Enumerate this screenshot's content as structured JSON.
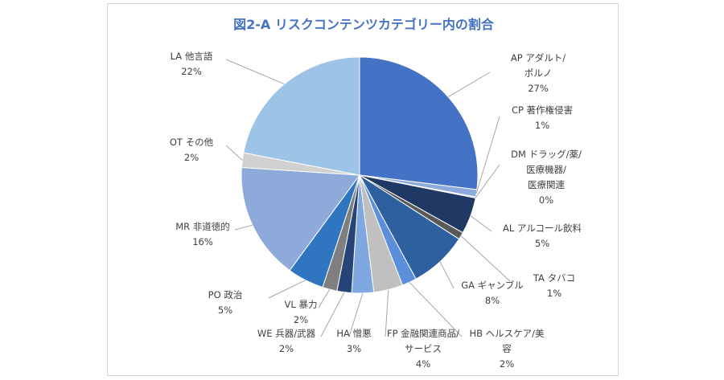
{
  "chart_data": {
    "type": "pie",
    "title": "図2-A リスクコンテンツカテゴリー内の割合",
    "slices": [
      {
        "code": "AP",
        "lines": [
          "AP アダルト/",
          "ポルノ"
        ],
        "value": 27,
        "pct": "27%",
        "color": "#4472c4"
      },
      {
        "code": "CP",
        "lines": [
          "CP 著作権侵害"
        ],
        "value": 1,
        "pct": "1%",
        "color": "#8faadc"
      },
      {
        "code": "DM",
        "lines": [
          "DM ドラッグ/薬/",
          "医療機器/",
          "医療関連"
        ],
        "value": 0,
        "pct": "0%",
        "color": "#a9a9a9"
      },
      {
        "code": "AL",
        "lines": [
          "AL アルコール飲料"
        ],
        "value": 5,
        "pct": "5%",
        "color": "#203864"
      },
      {
        "code": "TA",
        "lines": [
          "TA タバコ"
        ],
        "value": 1,
        "pct": "1%",
        "color": "#595959"
      },
      {
        "code": "GA",
        "lines": [
          "GA ギャンブル"
        ],
        "value": 8,
        "pct": "8%",
        "color": "#2e5f9f"
      },
      {
        "code": "HB",
        "lines": [
          "HB ヘルスケア/美",
          "容"
        ],
        "value": 2,
        "pct": "2%",
        "color": "#5b8fd9"
      },
      {
        "code": "FP",
        "lines": [
          "FP 金融関連商品/",
          "サービス"
        ],
        "value": 4,
        "pct": "4%",
        "color": "#c0c0c0"
      },
      {
        "code": "HA",
        "lines": [
          "HA 憎悪"
        ],
        "value": 3,
        "pct": "3%",
        "color": "#7fa7e0"
      },
      {
        "code": "WE",
        "lines": [
          "WE 兵器/武器"
        ],
        "value": 2,
        "pct": "2%",
        "color": "#264478"
      },
      {
        "code": "VL",
        "lines": [
          "VL 暴力"
        ],
        "value": 2,
        "pct": "2%",
        "color": "#7f7f7f"
      },
      {
        "code": "PO",
        "lines": [
          "PO 政治"
        ],
        "value": 5,
        "pct": "5%",
        "color": "#2f75c0"
      },
      {
        "code": "MR",
        "lines": [
          "MR 非道徳的"
        ],
        "value": 16,
        "pct": "16%",
        "color": "#8eaadb"
      },
      {
        "code": "OT",
        "lines": [
          "OT その他"
        ],
        "value": 2,
        "pct": "2%",
        "color": "#d0d0d0"
      },
      {
        "code": "LA",
        "lines": [
          "LA 他言語"
        ],
        "value": 22,
        "pct": "22%",
        "color": "#9dc3e6"
      }
    ]
  }
}
